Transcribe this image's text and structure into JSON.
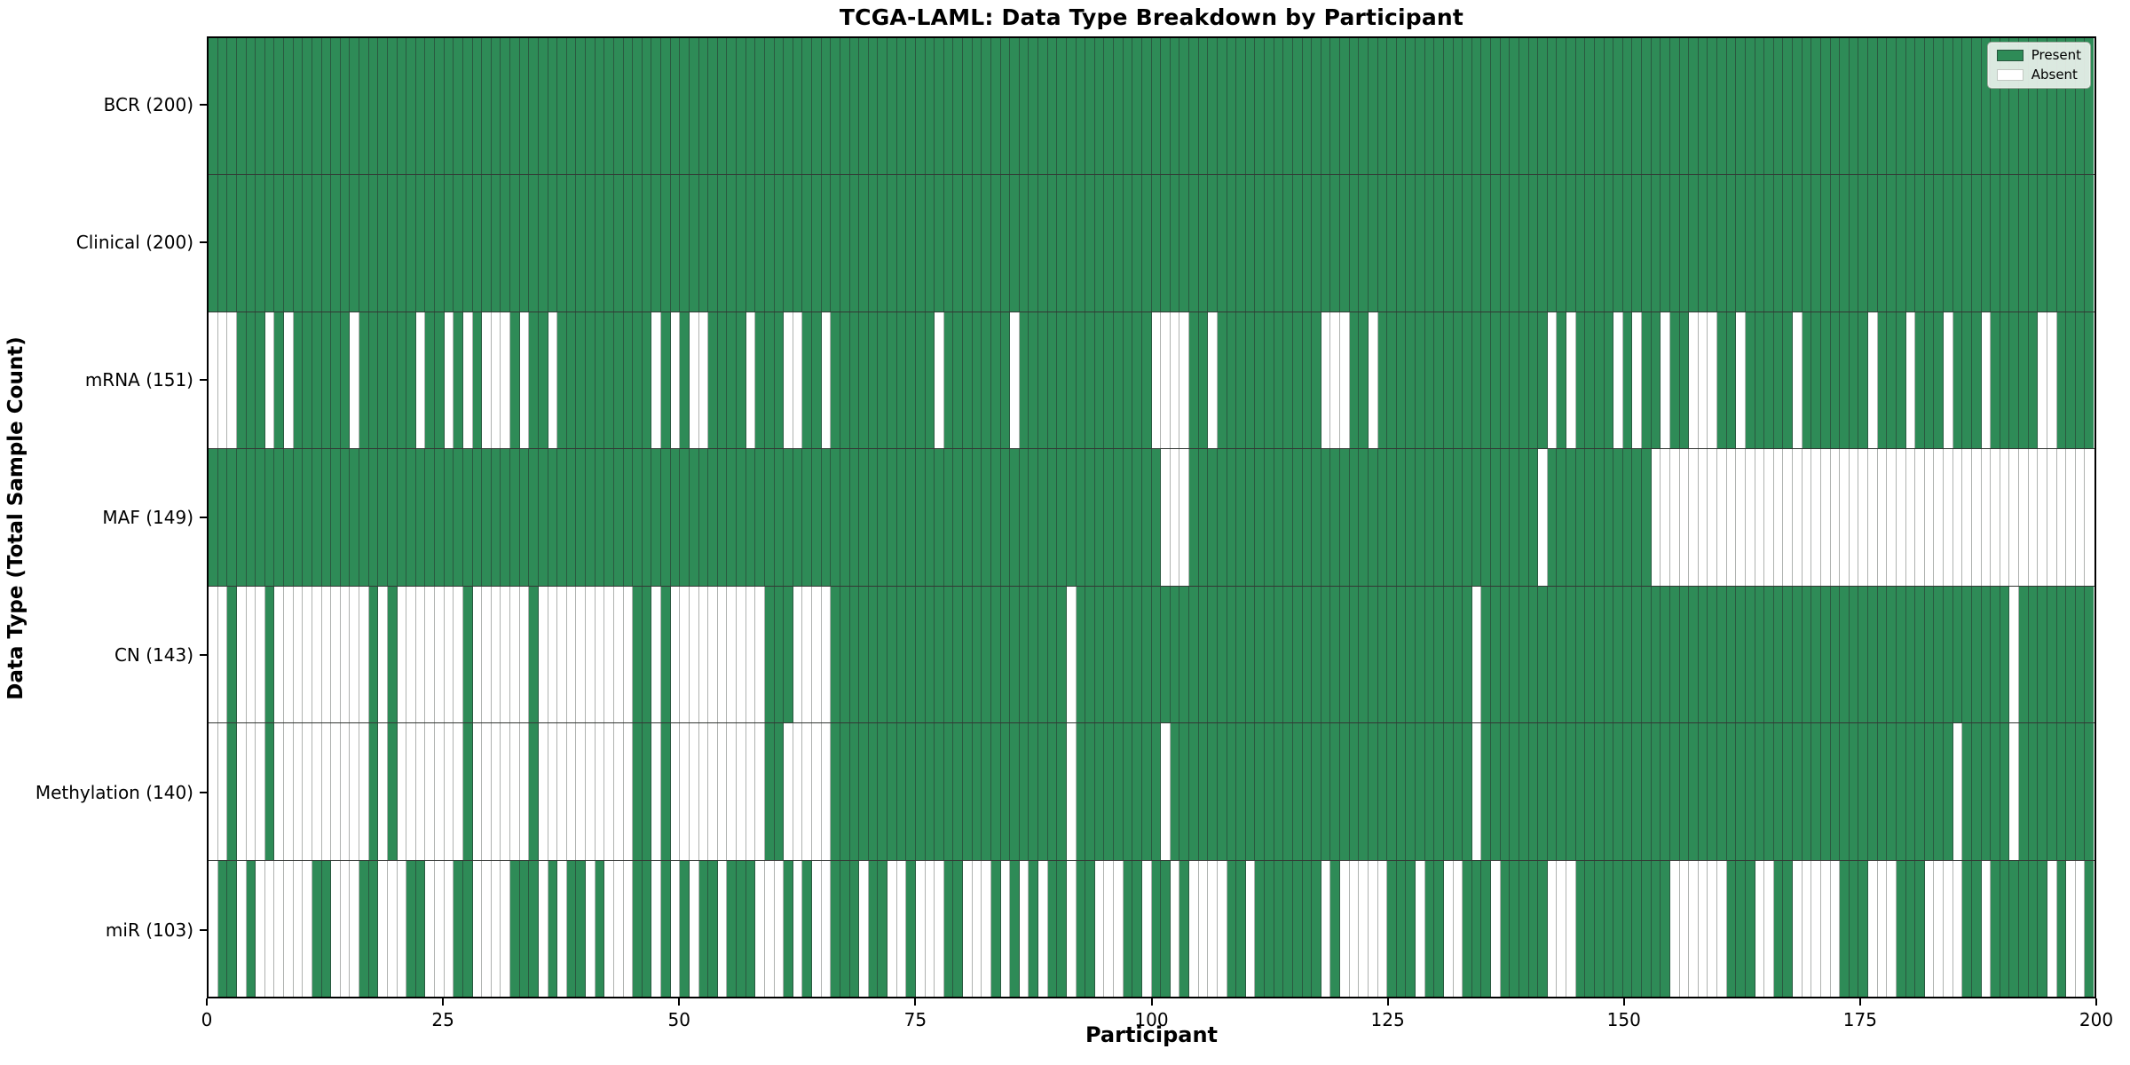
{
  "title": "TCGA-LAML: Data Type Breakdown by Participant",
  "xlabel": "Participant",
  "ylabel": "Data Type (Total Sample Count)",
  "legend": {
    "present_label": "Present",
    "absent_label": "Absent"
  },
  "colors": {
    "present": "#2e8b57",
    "absent": "#ffffff",
    "cell_edge": "rgba(40,50,45,0.55)",
    "row_divider": "#141411",
    "plot_border": "#000000",
    "legend_bg": "rgba(234,241,235,0.92)"
  },
  "x_ticks": [
    0,
    25,
    50,
    75,
    100,
    125,
    150,
    175,
    200
  ],
  "chart_data": {
    "type": "heatmap",
    "n_participants": 200,
    "x_axis": "Participant",
    "cell_states": [
      "Present",
      "Absent"
    ],
    "rows": [
      {
        "label": "BCR (200)",
        "name": "BCR",
        "present_count": 200,
        "absent": []
      },
      {
        "label": "Clinical (200)",
        "name": "Clinical",
        "present_count": 200,
        "absent": []
      },
      {
        "label": "mRNA (151)",
        "name": "mRNA",
        "present_count": 151,
        "absent": [
          0,
          1,
          2,
          6,
          8,
          15,
          22,
          25,
          27,
          29,
          30,
          31,
          33,
          36,
          47,
          49,
          51,
          52,
          57,
          61,
          62,
          65,
          77,
          85,
          100,
          101,
          102,
          103,
          106,
          118,
          119,
          120,
          123,
          142,
          144,
          149,
          151,
          154,
          157,
          158,
          159,
          162,
          168,
          176,
          180,
          184,
          188,
          194,
          195
        ]
      },
      {
        "label": "MAF (149)",
        "name": "MAF",
        "present_count": 149,
        "absent": [
          101,
          102,
          103,
          141,
          153,
          154,
          155,
          156,
          157,
          158,
          159,
          160,
          161,
          162,
          163,
          164,
          165,
          166,
          167,
          168,
          169,
          170,
          171,
          172,
          173,
          174,
          175,
          176,
          177,
          178,
          179,
          180,
          181,
          182,
          183,
          184,
          185,
          186,
          187,
          188,
          189,
          190,
          191,
          192,
          193,
          194,
          195,
          196,
          197,
          198,
          199
        ]
      },
      {
        "label": "CN (143)",
        "name": "CN",
        "present_count": 143,
        "absent": [
          0,
          1,
          3,
          4,
          5,
          7,
          8,
          9,
          10,
          11,
          12,
          13,
          14,
          15,
          16,
          18,
          20,
          21,
          22,
          23,
          24,
          25,
          26,
          28,
          29,
          30,
          31,
          32,
          33,
          35,
          36,
          37,
          38,
          39,
          40,
          41,
          42,
          43,
          44,
          47,
          49,
          50,
          51,
          52,
          53,
          54,
          55,
          56,
          57,
          58,
          62,
          63,
          64,
          65,
          91,
          134,
          191
        ]
      },
      {
        "label": "Methylation (140)",
        "name": "Methylation",
        "present_count": 140,
        "absent": [
          0,
          1,
          3,
          4,
          5,
          7,
          8,
          9,
          10,
          11,
          12,
          13,
          14,
          15,
          16,
          18,
          20,
          21,
          22,
          23,
          24,
          25,
          26,
          28,
          29,
          30,
          31,
          32,
          33,
          35,
          36,
          37,
          38,
          39,
          40,
          41,
          42,
          43,
          44,
          47,
          49,
          50,
          51,
          52,
          53,
          54,
          55,
          56,
          57,
          58,
          61,
          62,
          63,
          64,
          65,
          91,
          101,
          134,
          185,
          191
        ]
      },
      {
        "label": "miR (103)",
        "name": "miR",
        "present_count": 103,
        "absent": [
          0,
          3,
          5,
          6,
          7,
          8,
          9,
          10,
          13,
          14,
          15,
          18,
          19,
          20,
          23,
          24,
          25,
          28,
          29,
          30,
          31,
          35,
          37,
          40,
          42,
          43,
          44,
          47,
          49,
          51,
          54,
          58,
          59,
          60,
          62,
          64,
          65,
          69,
          72,
          73,
          75,
          76,
          77,
          80,
          81,
          82,
          84,
          86,
          88,
          91,
          94,
          95,
          96,
          99,
          102,
          104,
          105,
          106,
          107,
          110,
          118,
          120,
          121,
          122,
          123,
          124,
          128,
          131,
          132,
          136,
          142,
          143,
          144,
          155,
          156,
          157,
          158,
          159,
          160,
          164,
          165,
          168,
          169,
          170,
          171,
          172,
          176,
          177,
          178,
          182,
          183,
          184,
          185,
          188,
          195,
          197,
          198
        ]
      }
    ]
  }
}
